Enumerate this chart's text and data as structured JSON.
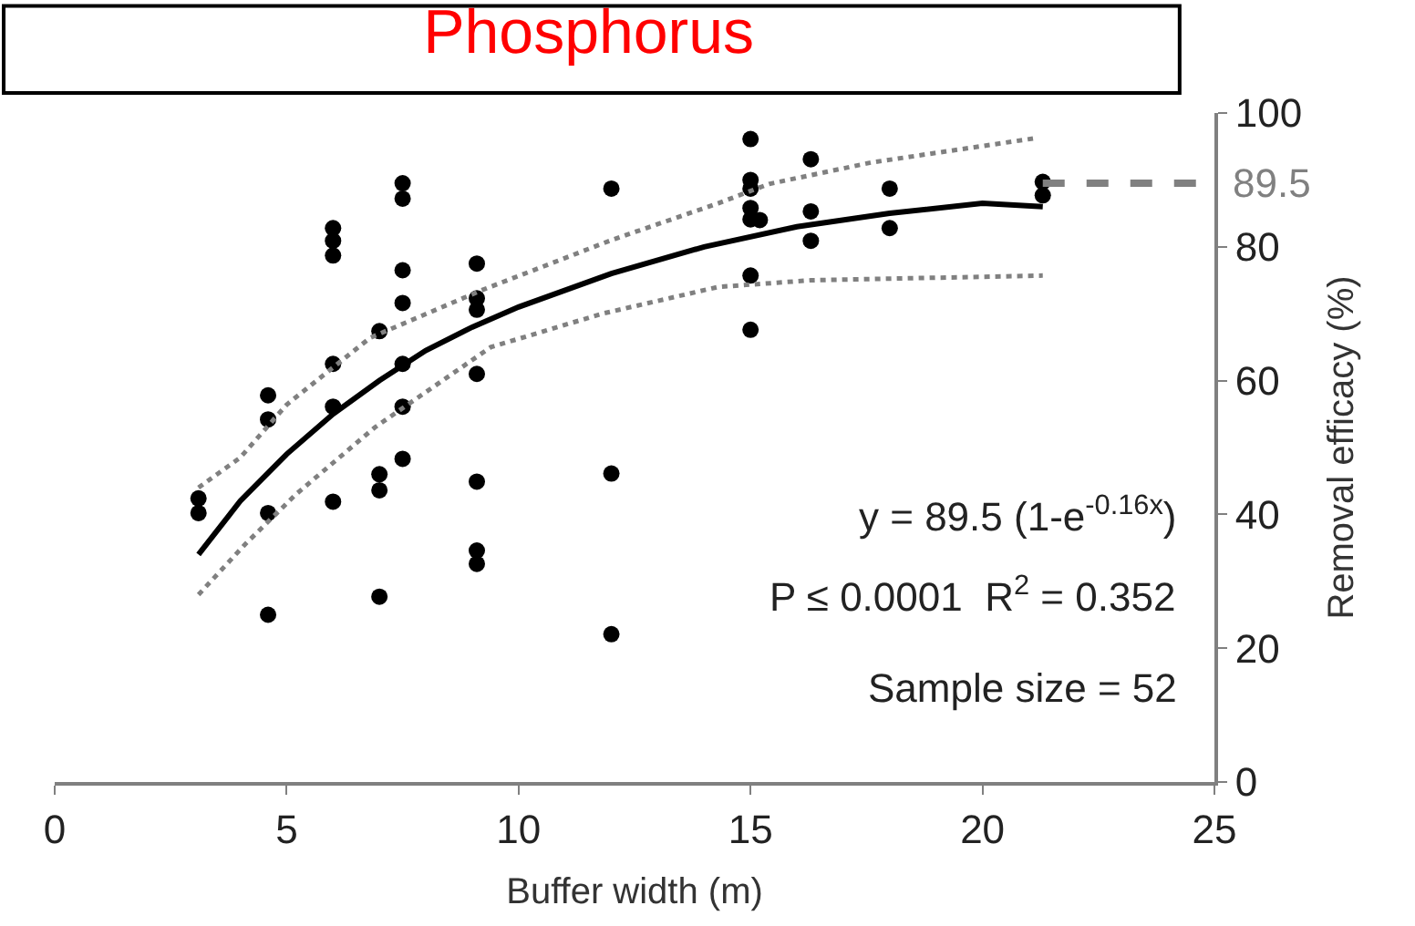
{
  "chart_data": {
    "type": "scatter",
    "title": "Phosphorus",
    "xlabel": "Buffer width (m)",
    "ylabel": "Removal efficacy (%)",
    "xlim": [
      0,
      25
    ],
    "xticks": [
      0,
      5,
      10,
      15,
      20,
      25
    ],
    "ylim": [
      0,
      100
    ],
    "yticks": [
      0,
      20,
      40,
      60,
      80,
      100
    ],
    "marker": "circle",
    "series": [
      {
        "color": "#000000",
        "x": [
          3.1,
          3.1,
          4.6,
          4.6,
          4.6,
          4.6,
          6,
          6,
          6,
          6,
          6,
          6,
          7,
          7,
          7,
          7,
          7.5,
          7.5,
          7.5,
          7.5,
          7.5,
          7.5,
          7.5,
          9.1,
          9.1,
          9.1,
          9.1,
          9.1,
          9.1,
          9.1,
          12,
          12,
          12,
          15,
          15,
          15,
          15,
          15,
          15,
          15,
          15.2,
          16.3,
          16.3,
          16.3,
          18,
          18,
          21.3,
          21.3
        ],
        "values": [
          42.4,
          40.2,
          57.8,
          54.2,
          40.2,
          25,
          82.8,
          80.9,
          78.7,
          62.5,
          56.1,
          41.9,
          67.4,
          46,
          43.6,
          27.7,
          89.5,
          87.2,
          76.5,
          71.6,
          62.5,
          56.1,
          48.3,
          77.5,
          72.3,
          70.6,
          61,
          44.9,
          34.6,
          32.6,
          88.7,
          46.1,
          22.1,
          96.1,
          90,
          88.7,
          85.8,
          84.1,
          75.7,
          67.6,
          84,
          93.1,
          85.3,
          80.9,
          88.7,
          82.8,
          89.7,
          87.7
        ]
      },
      {
        "type": "line",
        "color": "#000000",
        "marker": "none",
        "line_style": "solid",
        "x": [
          3.1,
          4,
          5,
          6,
          7,
          8,
          9,
          10,
          12,
          14,
          16,
          18,
          20,
          21.3
        ],
        "values": [
          34,
          42,
          49,
          55,
          60,
          64.5,
          68,
          71,
          76,
          80,
          83,
          85,
          86.5,
          86
        ]
      },
      {
        "type": "line",
        "color": "#808080",
        "marker": "none",
        "line_style": "dotted",
        "x": [
          3.1,
          4,
          5,
          6.8,
          9.2,
          12,
          14.3,
          15.4,
          17.6,
          21.2
        ],
        "values": [
          44,
          48.5,
          56.4,
          66.4,
          73.5,
          81,
          86.5,
          89.4,
          92.6,
          96.3
        ]
      },
      {
        "type": "line",
        "color": "#808080",
        "marker": "none",
        "line_style": "dotted",
        "x": [
          3.1,
          4.1,
          5.2,
          6.9,
          9.4,
          11.8,
          14.3,
          16.3,
          21.3
        ],
        "values": [
          28,
          35.5,
          43,
          53,
          65,
          70,
          74,
          75,
          75.7
        ]
      }
    ],
    "ref_lines": [
      {
        "axis": "y",
        "value": 89.5,
        "label": "89.5",
        "color": "#808080",
        "line_style": "dashed"
      }
    ],
    "annotations": [
      "y = 89.5 (1-e$^{-0.16x}$)",
      "P ≤ 0.0001  R$^{2}$ = 0.352",
      "Sample size = 52"
    ]
  }
}
